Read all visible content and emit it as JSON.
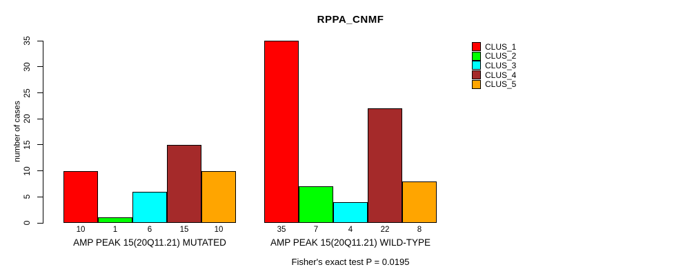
{
  "title": "RPPA_CNMF",
  "subtitle": "Fisher's exact test P = 0.0195",
  "chart_data": {
    "type": "bar",
    "title": "RPPA_CNMF",
    "xlabel": "",
    "ylabel": "number of cases",
    "ylim": [
      0,
      35
    ],
    "yticks": [
      0,
      5,
      10,
      15,
      20,
      25,
      30,
      35
    ],
    "grid": false,
    "legend_position": "top-right",
    "categories": [
      "AMP PEAK 15(20Q11.21) MUTATED",
      "AMP PEAK 15(20Q11.21) WILD-TYPE"
    ],
    "series": [
      {
        "name": "CLUS_1",
        "color": "#FF0000",
        "values": [
          10,
          35
        ]
      },
      {
        "name": "CLUS_2",
        "color": "#00FF00",
        "values": [
          1,
          7
        ]
      },
      {
        "name": "CLUS_3",
        "color": "#00FFFF",
        "values": [
          6,
          4
        ]
      },
      {
        "name": "CLUS_4",
        "color": "#A52A2A",
        "values": [
          15,
          22
        ]
      },
      {
        "name": "CLUS_5",
        "color": "#FFA500",
        "values": [
          10,
          8
        ]
      }
    ],
    "bar_value_labels": [
      [
        "10",
        "1",
        "6",
        "15",
        "10"
      ],
      [
        "35",
        "7",
        "4",
        "22",
        "8"
      ]
    ],
    "annotation": "Fisher's exact test P = 0.0195"
  }
}
